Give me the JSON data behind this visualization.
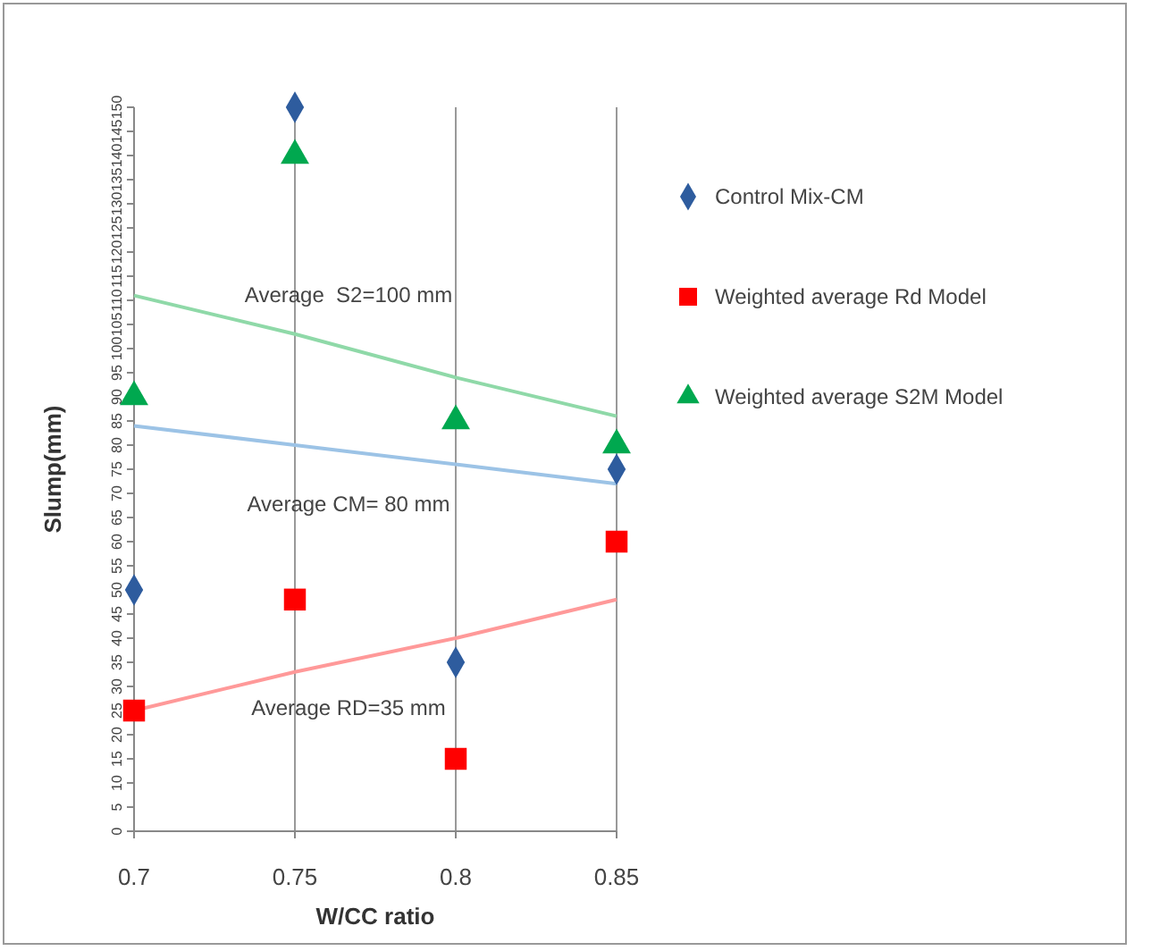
{
  "chart_data": {
    "type": "scatter",
    "xlabel": "W/CC ratio",
    "ylabel": "Slump(mm)",
    "x": [
      0.7,
      0.75,
      0.8,
      0.85
    ],
    "xlim": [
      0.7,
      0.85
    ],
    "xticks": [
      0.7,
      0.75,
      0.8,
      0.85
    ],
    "ylim": [
      0,
      150
    ],
    "yticks": [
      0,
      5,
      10,
      15,
      20,
      25,
      30,
      35,
      40,
      45,
      50,
      55,
      60,
      65,
      70,
      75,
      80,
      85,
      90,
      95,
      100,
      105,
      110,
      115,
      120,
      125,
      130,
      135,
      140,
      145,
      150
    ],
    "grid": "x",
    "legend": "right",
    "series": [
      {
        "name": "Control Mix-CM",
        "color": "#2e5c9e",
        "marker": "diamond",
        "values": [
          50,
          150,
          35,
          75
        ]
      },
      {
        "name": "Weighted average Rd Model",
        "color": "#ff0000",
        "marker": "square",
        "values": [
          25,
          48,
          15,
          60
        ]
      },
      {
        "name": "Weighted average S2M Model",
        "color": "#00a84f",
        "marker": "triangle",
        "values": [
          90,
          140,
          85,
          80
        ]
      },
      {
        "type": "line",
        "color": "#8fd9a8",
        "values": [
          111,
          103,
          94,
          86
        ],
        "marker": "none"
      },
      {
        "type": "line",
        "color": "#9cc3e6",
        "values": [
          84,
          80,
          76,
          72
        ],
        "marker": "none"
      },
      {
        "type": "line",
        "color": "#ff9999",
        "values": [
          25,
          33,
          40,
          48
        ],
        "marker": "none"
      }
    ],
    "annotations": [
      "Average  S2=100 mm",
      "Average CM= 80 mm",
      "Average RD=35 mm"
    ]
  }
}
